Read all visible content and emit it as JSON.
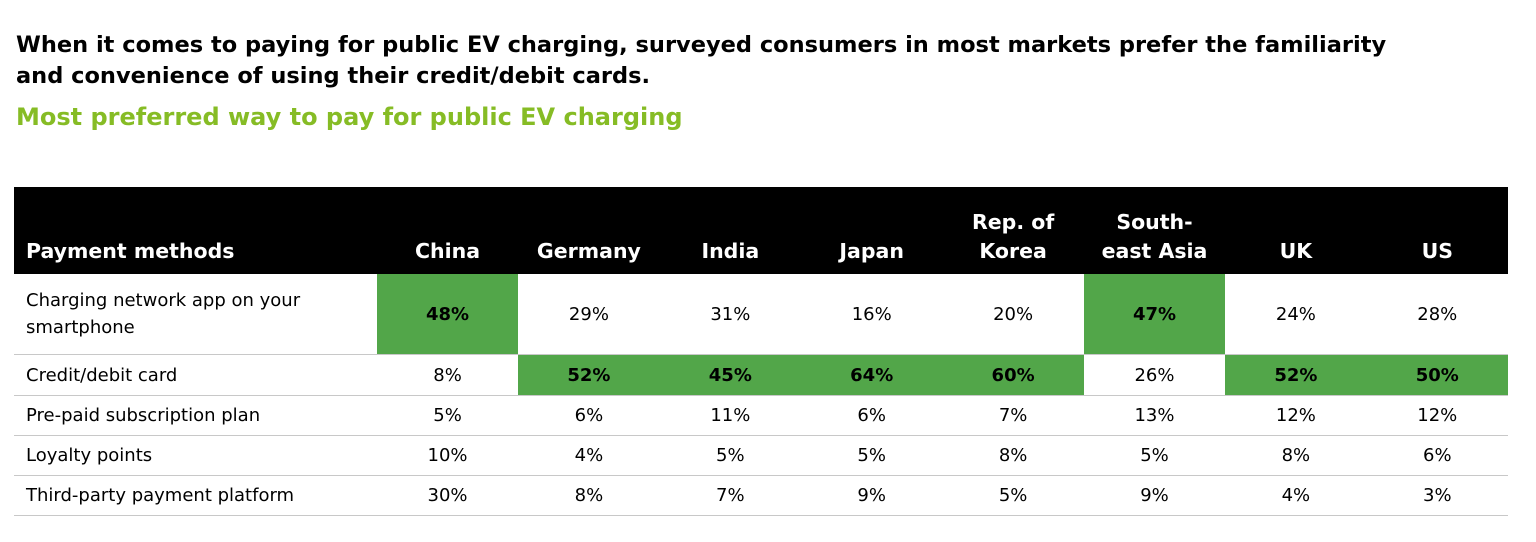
{
  "header": {
    "title": "When it comes to paying for public EV charging, surveyed consumers in most markets prefer the familiarity and convenience of using their credit/debit cards.",
    "subtitle": "Most preferred way to pay for public EV charging"
  },
  "colors": {
    "subtitle": "#86bc25",
    "highlight": "#52a649",
    "header_bg": "#000000"
  },
  "chart_data": {
    "type": "table",
    "title": "Most preferred way to pay for public EV charging",
    "row_header_label": "Payment methods",
    "columns": [
      "China",
      "Germany",
      "India",
      "Japan",
      "Rep. of\nKorea",
      "South-\neast Asia",
      "UK",
      "US"
    ],
    "rows": [
      {
        "label": "Charging network app on your smartphone",
        "values": [
          "48%",
          "29%",
          "31%",
          "16%",
          "20%",
          "47%",
          "24%",
          "28%"
        ],
        "highlight": [
          true,
          false,
          false,
          false,
          false,
          true,
          false,
          false
        ]
      },
      {
        "label": "Credit/debit card",
        "values": [
          "8%",
          "52%",
          "45%",
          "64%",
          "60%",
          "26%",
          "52%",
          "50%"
        ],
        "highlight": [
          false,
          true,
          true,
          true,
          true,
          false,
          true,
          true
        ]
      },
      {
        "label": "Pre-paid subscription plan",
        "values": [
          "5%",
          "6%",
          "11%",
          "6%",
          "7%",
          "13%",
          "12%",
          "12%"
        ],
        "highlight": [
          false,
          false,
          false,
          false,
          false,
          false,
          false,
          false
        ]
      },
      {
        "label": "Loyalty points",
        "values": [
          "10%",
          "4%",
          "5%",
          "5%",
          "8%",
          "5%",
          "8%",
          "6%"
        ],
        "highlight": [
          false,
          false,
          false,
          false,
          false,
          false,
          false,
          false
        ]
      },
      {
        "label": "Third-party payment platform",
        "values": [
          "30%",
          "8%",
          "7%",
          "9%",
          "5%",
          "9%",
          "4%",
          "3%"
        ],
        "highlight": [
          false,
          false,
          false,
          false,
          false,
          false,
          false,
          false
        ]
      }
    ]
  }
}
